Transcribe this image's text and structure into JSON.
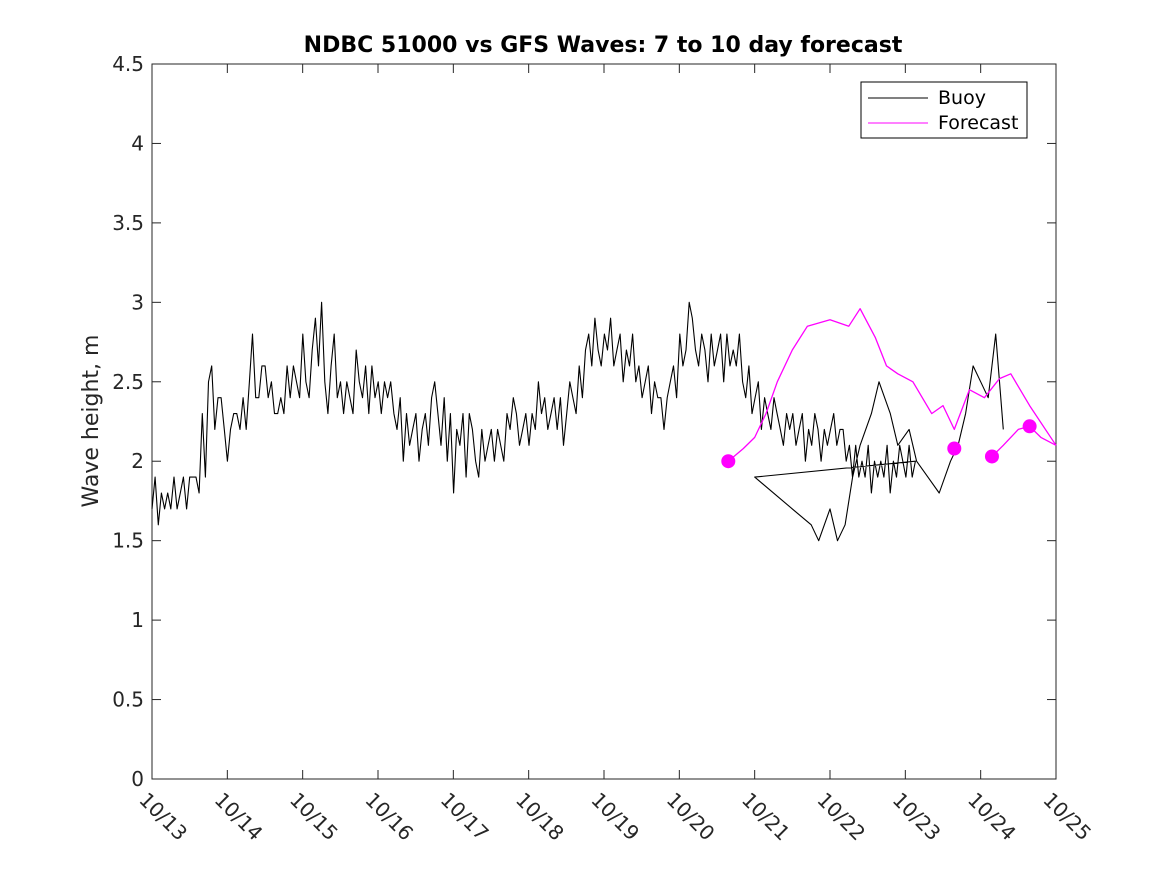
{
  "chart_data": {
    "type": "line",
    "title": "NDBC 51000 vs GFS Waves: 7 to 10 day forecast",
    "xlabel": "",
    "ylabel": "Wave height, m",
    "xlim": [
      0,
      12
    ],
    "ylim": [
      0,
      4.5
    ],
    "x_tick_values": [
      0,
      1,
      2,
      3,
      4,
      5,
      6,
      7,
      8,
      9,
      10,
      11,
      12
    ],
    "x_tick_labels": [
      "10/13",
      "10/14",
      "10/15",
      "10/16",
      "10/17",
      "10/18",
      "10/19",
      "10/20",
      "10/21",
      "10/22",
      "10/23",
      "10/24",
      "10/25"
    ],
    "y_tick_values": [
      0,
      0.5,
      1,
      1.5,
      2,
      2.5,
      3,
      3.5,
      4,
      4.5
    ],
    "y_tick_labels": [
      "0",
      "0.5",
      "1",
      "1.5",
      "2",
      "2.5",
      "3",
      "3.5",
      "4",
      "4.5"
    ],
    "legend": {
      "position": "top-right",
      "entries": [
        "Buoy",
        "Forecast"
      ]
    },
    "series": [
      {
        "name": "Buoy",
        "color": "#000000",
        "x_start": 0,
        "x_step": 0.0417,
        "values": [
          1.7,
          1.9,
          1.6,
          1.8,
          1.7,
          1.8,
          1.7,
          1.9,
          1.7,
          1.8,
          1.9,
          1.7,
          1.9,
          1.9,
          1.9,
          1.8,
          2.3,
          1.9,
          2.5,
          2.6,
          2.2,
          2.4,
          2.4,
          2.2,
          2.0,
          2.2,
          2.3,
          2.3,
          2.2,
          2.4,
          2.2,
          2.5,
          2.8,
          2.4,
          2.4,
          2.6,
          2.6,
          2.4,
          2.5,
          2.3,
          2.3,
          2.4,
          2.3,
          2.6,
          2.4,
          2.6,
          2.5,
          2.4,
          2.8,
          2.5,
          2.4,
          2.7,
          2.9,
          2.6,
          3.0,
          2.5,
          2.3,
          2.6,
          2.8,
          2.4,
          2.5,
          2.3,
          2.5,
          2.4,
          2.3,
          2.7,
          2.5,
          2.4,
          2.6,
          2.3,
          2.6,
          2.4,
          2.5,
          2.3,
          2.5,
          2.4,
          2.5,
          2.3,
          2.2,
          2.4,
          2.0,
          2.3,
          2.1,
          2.2,
          2.3,
          2.0,
          2.2,
          2.3,
          2.1,
          2.4,
          2.5,
          2.3,
          2.1,
          2.4,
          2.0,
          2.3,
          1.8,
          2.2,
          2.1,
          2.3,
          1.9,
          2.3,
          2.2,
          2.0,
          1.9,
          2.2,
          2.0,
          2.1,
          2.2,
          2.0,
          2.2,
          2.1,
          2.0,
          2.3,
          2.2,
          2.4,
          2.3,
          2.1,
          2.2,
          2.3,
          2.1,
          2.3,
          2.2,
          2.5,
          2.3,
          2.4,
          2.2,
          2.3,
          2.4,
          2.2,
          2.4,
          2.1,
          2.3,
          2.5,
          2.4,
          2.3,
          2.6,
          2.4,
          2.7,
          2.8,
          2.6,
          2.9,
          2.7,
          2.6,
          2.8,
          2.7,
          2.9,
          2.6,
          2.7,
          2.8,
          2.5,
          2.7,
          2.6,
          2.8,
          2.5,
          2.6,
          2.4,
          2.5,
          2.6,
          2.3,
          2.5,
          2.4,
          2.4,
          2.2,
          2.4,
          2.5,
          2.6,
          2.4,
          2.8,
          2.6,
          2.7,
          3.0,
          2.9,
          2.7,
          2.6,
          2.8,
          2.7,
          2.5,
          2.8,
          2.6,
          2.7,
          2.8,
          2.5,
          2.8,
          2.6,
          2.7,
          2.6,
          2.8,
          2.5,
          2.4,
          2.6,
          2.3,
          2.4,
          2.5,
          2.2,
          2.4,
          2.3,
          2.2,
          2.4,
          2.3,
          2.2,
          2.1,
          2.3,
          2.2,
          2.3,
          2.1,
          2.2,
          2.3,
          2.0,
          2.2,
          2.1,
          2.3,
          2.2,
          2.0,
          2.2,
          2.1,
          2.2,
          2.3,
          2.1,
          2.2,
          2.2,
          2.0,
          2.1,
          1.9,
          2.1,
          1.9,
          2.0,
          1.9,
          2.1,
          1.8,
          2.0,
          1.9,
          2.0,
          1.9,
          2.1,
          1.8,
          2.0,
          1.9,
          2.1,
          2.0,
          1.9,
          2.1,
          1.9,
          2.0
        ],
        "tail_x": [
          8.0,
          8.5,
          8.75,
          8.85,
          9.0,
          9.1,
          9.2,
          9.3,
          9.4,
          9.55,
          9.65,
          9.8,
          9.9,
          10.05,
          10.15,
          10.3,
          10.45,
          10.6,
          10.7,
          10.8,
          10.9,
          11.0,
          11.1,
          11.2,
          11.3
        ],
        "tail_y": [
          1.9,
          1.7,
          1.6,
          1.5,
          1.7,
          1.5,
          1.6,
          1.9,
          2.1,
          2.3,
          2.5,
          2.3,
          2.1,
          2.2,
          2.0,
          1.9,
          1.8,
          2.0,
          2.1,
          2.3,
          2.6,
          2.5,
          2.4,
          2.8,
          2.2
        ]
      },
      {
        "name": "Forecast",
        "color": "#ff00ff",
        "x": [
          7.65,
          7.85,
          8.0,
          8.15,
          8.3,
          8.5,
          8.7,
          9.0,
          9.25,
          9.4,
          9.6,
          9.75,
          9.9,
          10.1,
          10.35,
          10.5,
          10.65,
          10.85,
          11.05,
          11.25,
          11.4,
          11.65,
          12.0
        ],
        "values": [
          2.0,
          2.08,
          2.15,
          2.3,
          2.5,
          2.7,
          2.85,
          2.89,
          2.85,
          2.96,
          2.78,
          2.6,
          2.55,
          2.5,
          2.3,
          2.35,
          2.2,
          2.45,
          2.4,
          2.52,
          2.55,
          2.35,
          2.1
        ],
        "markers_x": [
          7.65,
          10.65,
          11.15,
          11.65
        ],
        "markers_y": [
          2.0,
          2.08,
          2.03,
          2.22
        ],
        "tail_x": [
          11.15,
          11.3,
          11.5,
          11.65,
          11.8,
          12.0
        ],
        "tail_y": [
          2.03,
          2.1,
          2.2,
          2.22,
          2.15,
          2.1
        ]
      }
    ]
  }
}
